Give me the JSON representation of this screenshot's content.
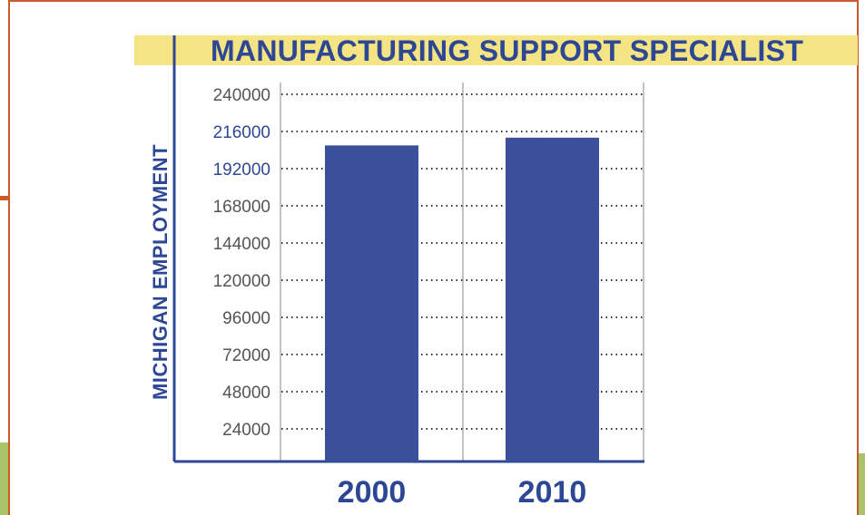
{
  "chart_data": {
    "type": "bar",
    "title": "MANUFACTURING SUPPORT SPECIALIST",
    "xlabel": "",
    "ylabel": "MICHIGAN EMPLOYMENT",
    "categories": [
      "2000",
      "2010"
    ],
    "values": [
      207000,
      212000
    ],
    "ylim": [
      0,
      240000
    ],
    "yticks": [
      "24000",
      "48000",
      "72000",
      "96000",
      "120000",
      "144000",
      "168000",
      "192000",
      "216000",
      "240000"
    ],
    "highlighted_yticks": [
      "192000",
      "216000"
    ],
    "grid": "dotted horizontal",
    "legend": "none",
    "colors": {
      "bar": "#3a509b",
      "title_band": "#f4e484",
      "title_text": "#2e4795",
      "frame": "#c85a2b",
      "tick_text": "#555555",
      "highlight_tick_text": "#2e4795"
    }
  }
}
